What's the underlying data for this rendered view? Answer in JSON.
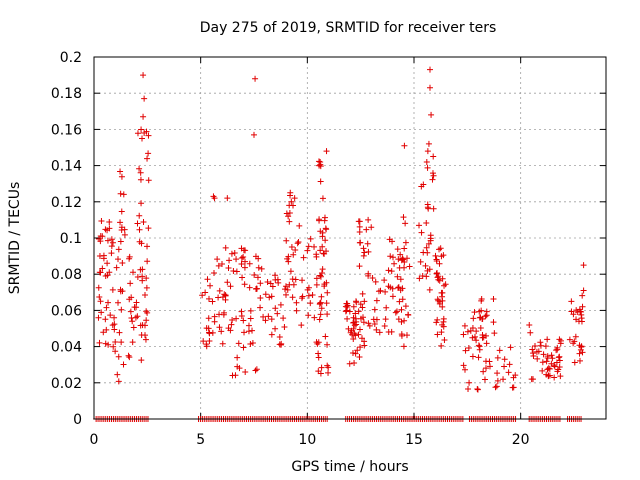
{
  "chart_data": {
    "type": "scatter",
    "title": "Day 275 of 2019, SRMTID for receiver ters",
    "xlabel": "GPS time / hours",
    "ylabel": "SRMTID / TECUs",
    "xlim": [
      0,
      24
    ],
    "ylim": [
      0,
      0.2
    ],
    "xticks": [
      0,
      5,
      10,
      15,
      20
    ],
    "xtick_labels": [
      "0",
      "5",
      "10",
      "15",
      "20"
    ],
    "yticks": [
      0,
      0.02,
      0.04,
      0.06,
      0.08,
      0.1,
      0.12,
      0.14,
      0.16,
      0.18,
      0.2
    ],
    "ytick_labels": [
      "0",
      "0.02",
      "0.04",
      "0.06",
      "0.08",
      "0.1",
      "0.12",
      "0.14",
      "0.16",
      "0.18",
      "0.2"
    ],
    "grid": true,
    "marker": "+",
    "color": "#e00000",
    "zero_band_ranges": [
      [
        0.1,
        2.6
      ],
      [
        4.9,
        11.0
      ],
      [
        11.8,
        17.3
      ],
      [
        17.6,
        19.8
      ],
      [
        20.4,
        21.9
      ],
      [
        22.2,
        22.9
      ]
    ],
    "clusters": [
      {
        "range": [
          0.2,
          0.8
        ],
        "ymin": 0.04,
        "ymax": 0.11,
        "n": 34
      },
      {
        "range": [
          0.8,
          1.4
        ],
        "ymin": 0.02,
        "ymax": 0.1,
        "n": 28
      },
      {
        "range": [
          1.2,
          1.45
        ],
        "ymin": 0.1,
        "ymax": 0.138,
        "n": 10
      },
      {
        "range": [
          1.6,
          2.5
        ],
        "ymin": 0.028,
        "ymax": 0.1,
        "n": 40
      },
      {
        "range": [
          2.0,
          2.6
        ],
        "ymin": 0.1,
        "ymax": 0.16,
        "n": 16
      },
      {
        "range": [
          5.0,
          5.6
        ],
        "ymin": 0.038,
        "ymax": 0.08,
        "n": 16
      },
      {
        "range": [
          5.6,
          6.4
        ],
        "ymin": 0.04,
        "ymax": 0.1,
        "n": 26
      },
      {
        "range": [
          6.4,
          7.1
        ],
        "ymin": 0.021,
        "ymax": 0.095,
        "n": 30
      },
      {
        "range": [
          7.2,
          8.1
        ],
        "ymin": 0.024,
        "ymax": 0.09,
        "n": 26
      },
      {
        "range": [
          8.1,
          9.0
        ],
        "ymin": 0.035,
        "ymax": 0.08,
        "n": 24
      },
      {
        "range": [
          9.0,
          9.7
        ],
        "ymin": 0.05,
        "ymax": 0.125,
        "n": 26
      },
      {
        "range": [
          9.7,
          10.4
        ],
        "ymin": 0.047,
        "ymax": 0.1,
        "n": 16
      },
      {
        "range": [
          10.4,
          11.0
        ],
        "ymin": 0.025,
        "ymax": 0.1,
        "n": 40
      },
      {
        "range": [
          10.5,
          10.9
        ],
        "ymin": 0.1,
        "ymax": 0.148,
        "n": 14
      },
      {
        "range": [
          11.8,
          12.6
        ],
        "ymin": 0.03,
        "ymax": 0.07,
        "n": 40
      },
      {
        "range": [
          12.4,
          13.0
        ],
        "ymin": 0.04,
        "ymax": 0.11,
        "n": 26
      },
      {
        "range": [
          13.0,
          13.7
        ],
        "ymin": 0.045,
        "ymax": 0.08,
        "n": 16
      },
      {
        "range": [
          13.8,
          14.5
        ],
        "ymin": 0.045,
        "ymax": 0.1,
        "n": 30
      },
      {
        "range": [
          14.4,
          14.8
        ],
        "ymin": 0.04,
        "ymax": 0.113,
        "n": 20
      },
      {
        "range": [
          15.2,
          15.8
        ],
        "ymin": 0.07,
        "ymax": 0.13,
        "n": 20
      },
      {
        "range": [
          15.6,
          16.0
        ],
        "ymin": 0.1,
        "ymax": 0.155,
        "n": 8
      },
      {
        "range": [
          16.0,
          16.5
        ],
        "ymin": 0.04,
        "ymax": 0.1,
        "n": 36
      },
      {
        "range": [
          17.3,
          18.3
        ],
        "ymin": 0.015,
        "ymax": 0.06,
        "n": 30
      },
      {
        "range": [
          18.0,
          18.8
        ],
        "ymin": 0.02,
        "ymax": 0.075,
        "n": 20
      },
      {
        "range": [
          18.8,
          19.8
        ],
        "ymin": 0.015,
        "ymax": 0.04,
        "n": 16
      },
      {
        "range": [
          20.4,
          21.2
        ],
        "ymin": 0.022,
        "ymax": 0.058,
        "n": 18
      },
      {
        "range": [
          21.2,
          21.9
        ],
        "ymin": 0.022,
        "ymax": 0.045,
        "n": 30
      },
      {
        "range": [
          22.3,
          22.9
        ],
        "ymin": 0.03,
        "ymax": 0.07,
        "n": 26
      }
    ],
    "extra_points": [
      [
        2.3,
        0.19
      ],
      [
        2.35,
        0.177
      ],
      [
        2.3,
        0.167
      ],
      [
        2.35,
        0.158
      ],
      [
        2.25,
        0.155
      ],
      [
        7.55,
        0.188
      ],
      [
        7.5,
        0.157
      ],
      [
        15.75,
        0.193
      ],
      [
        15.75,
        0.183
      ],
      [
        15.8,
        0.168
      ],
      [
        15.7,
        0.152
      ],
      [
        15.65,
        0.148
      ],
      [
        15.9,
        0.145
      ],
      [
        15.6,
        0.142
      ],
      [
        14.55,
        0.151
      ],
      [
        10.9,
        0.148
      ],
      [
        10.6,
        0.142
      ],
      [
        10.55,
        0.14
      ],
      [
        9.2,
        0.125
      ],
      [
        9.25,
        0.12
      ],
      [
        9.15,
        0.118
      ],
      [
        9.1,
        0.112
      ],
      [
        5.6,
        0.123
      ],
      [
        5.65,
        0.122
      ],
      [
        6.25,
        0.122
      ],
      [
        12.85,
        0.11
      ],
      [
        22.95,
        0.085
      ],
      [
        22.95,
        0.071
      ],
      [
        22.9,
        0.062
      ]
    ]
  }
}
